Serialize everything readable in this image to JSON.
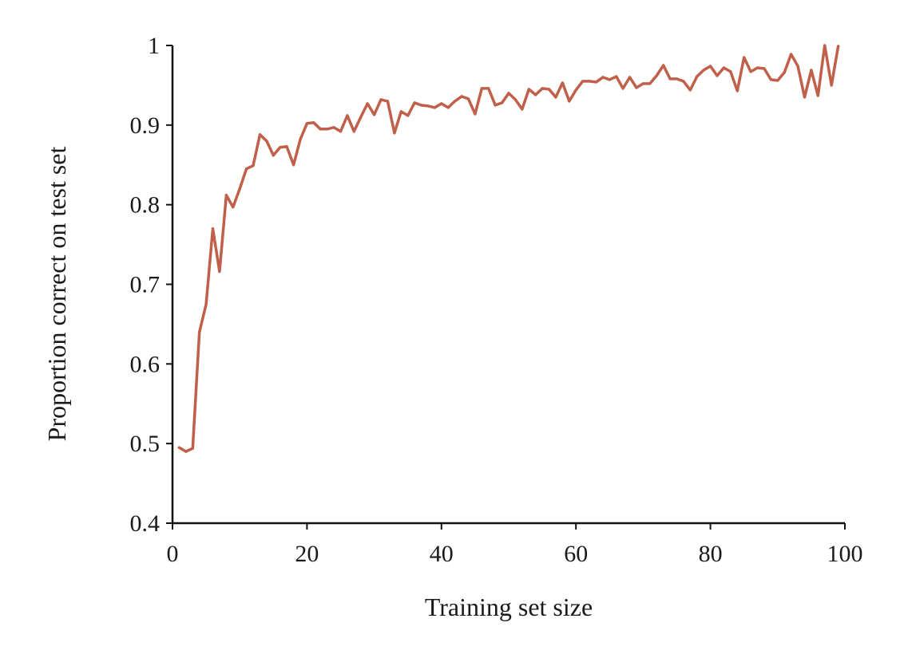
{
  "chart_data": {
    "type": "line",
    "xlabel": "Training set size",
    "ylabel": "Proportion correct on test set",
    "xlim": [
      0,
      100
    ],
    "ylim": [
      0.4,
      1
    ],
    "x_ticks": [
      0,
      20,
      40,
      60,
      80,
      100
    ],
    "y_ticks": [
      0.4,
      0.5,
      0.6,
      0.7,
      0.8,
      0.9,
      1
    ],
    "x_tick_labels": [
      "0",
      "20",
      "40",
      "60",
      "80",
      "100"
    ],
    "y_tick_labels": [
      "0.4",
      "0.5",
      "0.6",
      "0.7",
      "0.8",
      "0.9",
      "1"
    ],
    "grid": false,
    "legend": "none",
    "color": "#c0604a",
    "series": [
      {
        "x": [
          1,
          2,
          3,
          4,
          5,
          6,
          7,
          8,
          9,
          10,
          11,
          12,
          13,
          14,
          15,
          16,
          17,
          18,
          19,
          20,
          21,
          22,
          23,
          24,
          25,
          26,
          27,
          28,
          29,
          30,
          31,
          32,
          33,
          34,
          35,
          36,
          37,
          38,
          39,
          40,
          41,
          42,
          43,
          44,
          45,
          46,
          47,
          48,
          49,
          50,
          51,
          52,
          53,
          54,
          55,
          56,
          57,
          58,
          59,
          60,
          61,
          62,
          63,
          64,
          65,
          66,
          67,
          68,
          69,
          70,
          71,
          72,
          73,
          74,
          75,
          76,
          77,
          78,
          79,
          80,
          81,
          82,
          83,
          84,
          85,
          86,
          87,
          88,
          89,
          90,
          91,
          92,
          93,
          94,
          95,
          96,
          97,
          98,
          99
        ],
        "y": [
          0.495,
          0.49,
          0.494,
          0.64,
          0.675,
          0.77,
          0.716,
          0.812,
          0.797,
          0.82,
          0.845,
          0.849,
          0.888,
          0.88,
          0.862,
          0.872,
          0.873,
          0.85,
          0.882,
          0.902,
          0.903,
          0.895,
          0.895,
          0.897,
          0.892,
          0.912,
          0.892,
          0.91,
          0.927,
          0.913,
          0.932,
          0.93,
          0.89,
          0.917,
          0.912,
          0.928,
          0.925,
          0.924,
          0.922,
          0.927,
          0.922,
          0.93,
          0.936,
          0.933,
          0.914,
          0.946,
          0.946,
          0.925,
          0.928,
          0.94,
          0.932,
          0.92,
          0.945,
          0.938,
          0.946,
          0.945,
          0.935,
          0.953,
          0.93,
          0.944,
          0.955,
          0.955,
          0.954,
          0.96,
          0.957,
          0.961,
          0.946,
          0.96,
          0.947,
          0.952,
          0.952,
          0.962,
          0.975,
          0.958,
          0.958,
          0.955,
          0.944,
          0.961,
          0.969,
          0.974,
          0.962,
          0.972,
          0.967,
          0.943,
          0.985,
          0.967,
          0.972,
          0.971,
          0.957,
          0.956,
          0.966,
          0.989,
          0.974,
          0.935,
          0.969,
          0.937,
          1.0,
          0.95,
          0.999
        ]
      }
    ]
  }
}
